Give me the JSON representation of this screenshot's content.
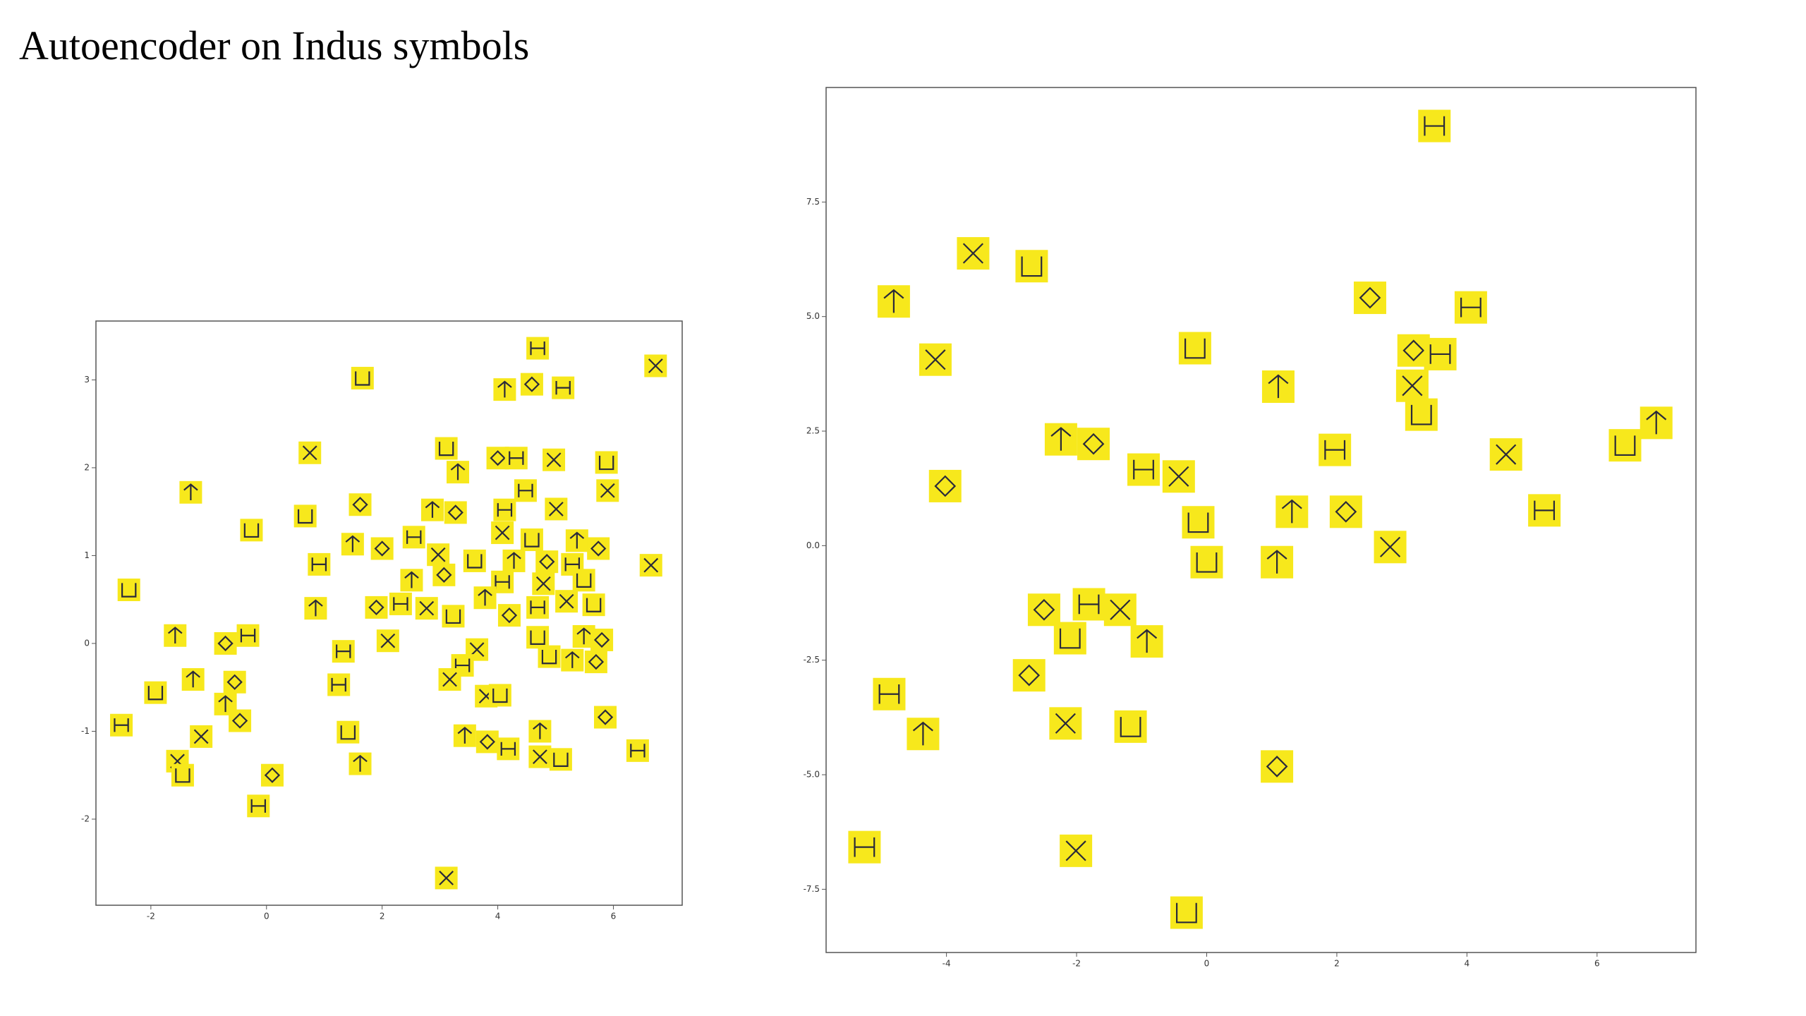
{
  "title": "Autoencoder on Indus symbols",
  "chart_data": [
    {
      "type": "scatter",
      "color": "#f7e81c",
      "xlim": [
        -2.95,
        7.19
      ],
      "ylim": [
        -2.98,
        3.67
      ],
      "xticks": [
        -2,
        0,
        2,
        4,
        6
      ],
      "yticks": [
        -2,
        -1,
        0,
        1,
        2,
        3
      ],
      "x": [
        4.69,
        6.73,
        1.66,
        4.12,
        4.59,
        5.13,
        0.75,
        3.11,
        3.31,
        4.0,
        4.32,
        4.97,
        5.88,
        -1.31,
        1.62,
        4.48,
        5.9,
        0.67,
        2.87,
        3.27,
        4.12,
        5.01,
        -0.26,
        1.49,
        2.0,
        2.55,
        4.08,
        4.59,
        5.37,
        5.74,
        0.91,
        2.97,
        3.6,
        4.28,
        4.85,
        5.29,
        6.65,
        -2.38,
        2.51,
        3.07,
        4.08,
        4.79,
        5.49,
        0.85,
        1.9,
        2.32,
        2.77,
        3.23,
        3.78,
        4.2,
        4.69,
        5.19,
        5.66,
        -1.58,
        -0.71,
        -0.32,
        2.1,
        4.69,
        5.49,
        5.8,
        1.33,
        3.64,
        4.89,
        5.29,
        5.7,
        3.39,
        3.17,
        -1.92,
        -1.27,
        -0.55,
        1.25,
        3.8,
        4.04,
        -0.71,
        -0.46,
        -2.51,
        -1.13,
        1.41,
        3.43,
        3.82,
        4.18,
        4.73,
        5.09,
        4.73,
        5.86,
        6.42,
        -1.54,
        -1.45,
        1.62,
        0.1,
        -0.14,
        3.11
      ],
      "values": [
        3.36,
        3.16,
        3.02,
        2.89,
        2.95,
        2.91,
        2.17,
        2.22,
        1.95,
        2.11,
        2.11,
        2.09,
        2.06,
        1.72,
        1.58,
        1.74,
        1.74,
        1.45,
        1.52,
        1.49,
        1.52,
        1.53,
        1.29,
        1.13,
        1.08,
        1.21,
        1.26,
        1.18,
        1.17,
        1.08,
        0.9,
        1.01,
        0.94,
        0.94,
        0.93,
        0.9,
        0.89,
        0.61,
        0.72,
        0.78,
        0.7,
        0.68,
        0.72,
        0.4,
        0.41,
        0.45,
        0.4,
        0.31,
        0.52,
        0.32,
        0.41,
        0.48,
        0.44,
        0.09,
        0.0,
        0.09,
        0.03,
        0.07,
        0.08,
        0.04,
        -0.09,
        -0.07,
        -0.15,
        -0.19,
        -0.21,
        -0.25,
        -0.41,
        -0.56,
        -0.41,
        -0.44,
        -0.47,
        -0.6,
        -0.59,
        -0.69,
        -0.88,
        -0.93,
        -1.06,
        -1.01,
        -1.05,
        -1.12,
        -1.2,
        -1.29,
        -1.32,
        -1.0,
        -0.84,
        -1.22,
        -1.34,
        -1.5,
        -1.37,
        -1.5,
        -1.85,
        -2.67
      ]
    },
    {
      "type": "scatter",
      "color": "#f7e81c",
      "xlim": [
        -5.85,
        7.52
      ],
      "ylim": [
        -8.88,
        10.0
      ],
      "xticks": [
        -4,
        -2,
        0,
        2,
        4,
        6
      ],
      "yticks": [
        -7.5,
        {
          "value": -5,
          "label": "-5.0"
        },
        -2.5,
        {
          "value": 0,
          "label": "0.0"
        },
        2.5,
        {
          "value": 5,
          "label": "5.0"
        },
        7.5
      ],
      "x": [
        3.5,
        -3.59,
        -2.69,
        -4.81,
        2.51,
        4.06,
        -4.17,
        -0.18,
        1.1,
        3.18,
        3.59,
        3.16,
        3.3,
        -2.24,
        -1.74,
        1.97,
        4.6,
        6.43,
        6.91,
        -4.02,
        -0.97,
        -0.43,
        -0.13,
        1.31,
        2.14,
        5.19,
        2.82,
        0.0,
        1.08,
        -2.5,
        -1.81,
        -1.33,
        -2.1,
        -0.92,
        -2.73,
        -4.88,
        -2.17,
        -1.17,
        -4.36,
        1.08,
        -5.26,
        -2.01,
        -0.31
      ],
      "values": [
        9.16,
        6.38,
        6.1,
        5.33,
        5.41,
        5.2,
        4.06,
        4.31,
        3.47,
        4.26,
        4.18,
        3.49,
        2.86,
        2.32,
        2.22,
        2.09,
        1.99,
        2.19,
        2.68,
        1.3,
        1.66,
        1.51,
        0.51,
        0.74,
        0.74,
        0.77,
        -0.03,
        -0.36,
        -0.36,
        -1.4,
        -1.28,
        -1.4,
        -2.02,
        -2.09,
        -2.83,
        -3.24,
        -3.88,
        -3.95,
        -4.11,
        -4.82,
        -6.58,
        -6.66,
        -8.01
      ]
    }
  ]
}
